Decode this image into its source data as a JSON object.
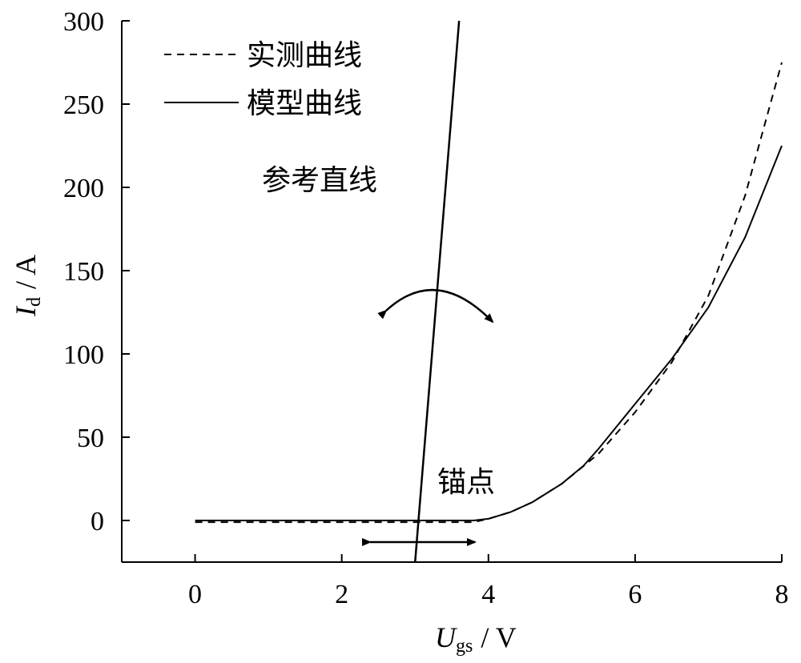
{
  "chart_data": {
    "type": "line",
    "xlabel": {
      "symbol": "U",
      "subscript": "gs",
      "unit": "/ V"
    },
    "ylabel": {
      "symbol": "I",
      "subscript": "d",
      "unit": "/ A"
    },
    "xlim": [
      -1,
      8
    ],
    "ylim": [
      -25,
      300
    ],
    "xticks": [
      0,
      2,
      4,
      6,
      8
    ],
    "yticks": [
      0,
      50,
      100,
      150,
      200,
      250,
      300
    ],
    "grid": false,
    "legend_position": "top-left",
    "series": [
      {
        "name": "实测曲线",
        "style": "dashed",
        "x": [
          0,
          1,
          2,
          3,
          3.8,
          4.0,
          4.3,
          4.6,
          5.0,
          5.5,
          6.0,
          6.5,
          7.0,
          7.5,
          8.0
        ],
        "y": [
          -1,
          -1,
          -1,
          -1,
          -1,
          1,
          5,
          11,
          22,
          40,
          65,
          95,
          135,
          195,
          275
        ]
      },
      {
        "name": "模型曲线",
        "style": "solid",
        "x": [
          0,
          1,
          2,
          3,
          3.8,
          4.0,
          4.3,
          4.6,
          5.0,
          5.3,
          5.5,
          6.0,
          6.5,
          7.0,
          7.5,
          8.0
        ],
        "y": [
          0,
          0,
          0,
          0,
          0,
          1,
          5,
          11,
          22,
          33,
          43,
          70,
          97,
          128,
          170,
          225
        ]
      }
    ],
    "reference_line": {
      "label": "参考直线",
      "x": [
        3.0,
        3.6
      ],
      "y": [
        -25,
        300
      ]
    },
    "annotations": {
      "anchor_label": "锚点"
    }
  }
}
